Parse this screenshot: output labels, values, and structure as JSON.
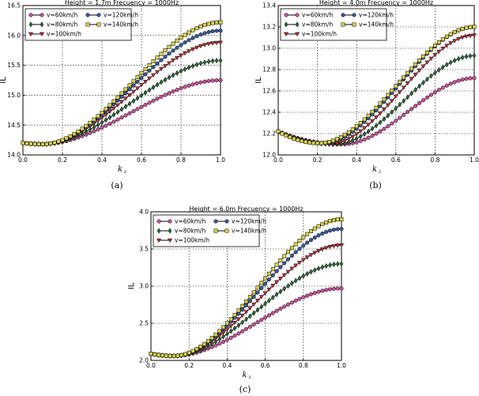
{
  "chart_data": [
    {
      "type": "line",
      "caption": "(a)",
      "title": "Height = 1.7m  Frecuency = 1000Hz",
      "xlabel": "k",
      "xlabel_sub": "z",
      "ylabel": "IL",
      "xlim": [
        0.0,
        1.0
      ],
      "ylim": [
        14.0,
        16.5
      ],
      "xticks": [
        "0.0",
        "0.2",
        "0.4",
        "0.6",
        "0.8",
        "1.0"
      ],
      "yticks": [
        "14.0",
        "14.5",
        "15.0",
        "15.5",
        "16.0",
        "16.5"
      ],
      "legend_position": "top-left",
      "series": [
        {
          "name": "v=60km/h",
          "marker": "circle",
          "color": "#c8509a",
          "start": 14.2,
          "min": 14.18,
          "x_min": 0.1,
          "end": 15.25
        },
        {
          "name": "v=80km/h",
          "marker": "diamond",
          "color": "#2e6b3a",
          "start": 14.2,
          "min": 14.18,
          "x_min": 0.1,
          "end": 15.58
        },
        {
          "name": "v=100km/h",
          "marker": "triangle",
          "color": "#c4303a",
          "start": 14.2,
          "min": 14.18,
          "x_min": 0.1,
          "end": 15.88
        },
        {
          "name": "v=120km/h",
          "marker": "circle",
          "color": "#3a5a9a",
          "start": 14.2,
          "min": 14.18,
          "x_min": 0.1,
          "end": 16.08
        },
        {
          "name": "v=140km/h",
          "marker": "square",
          "color": "#d8d048",
          "start": 14.2,
          "min": 14.18,
          "x_min": 0.1,
          "end": 16.22
        }
      ]
    },
    {
      "type": "line",
      "caption": "(b)",
      "title": "Height = 4.0m  Frecuency = 1000Hz",
      "xlabel": "k",
      "xlabel_sub": "z",
      "ylabel": "IL",
      "xlim": [
        0.0,
        1.0
      ],
      "ylim": [
        12.0,
        13.4
      ],
      "xticks": [
        "0.0",
        "0.2",
        "0.4",
        "0.6",
        "0.8",
        "1.0"
      ],
      "yticks": [
        "12.0",
        "12.2",
        "12.4",
        "12.6",
        "12.8",
        "13.0",
        "13.2",
        "13.4"
      ],
      "legend_position": "top-left",
      "series": [
        {
          "name": "v=60km/h",
          "marker": "circle",
          "color": "#c8509a",
          "start": 12.22,
          "min": 12.1,
          "x_min": 0.33,
          "end": 12.72
        },
        {
          "name": "v=80km/h",
          "marker": "diamond",
          "color": "#2e6b3a",
          "start": 12.22,
          "min": 12.1,
          "x_min": 0.29,
          "end": 12.93
        },
        {
          "name": "v=100km/h",
          "marker": "triangle",
          "color": "#c4303a",
          "start": 12.22,
          "min": 12.1,
          "x_min": 0.26,
          "end": 13.12
        },
        {
          "name": "v=120km/h",
          "marker": "circle",
          "color": "#3a5a9a",
          "start": 12.22,
          "min": 12.11,
          "x_min": 0.23,
          "end": 13.2
        },
        {
          "name": "v=140km/h",
          "marker": "square",
          "color": "#d8d048",
          "start": 12.22,
          "min": 12.11,
          "x_min": 0.21,
          "end": 13.2
        }
      ]
    },
    {
      "type": "line",
      "caption": "(c)",
      "title": "Height = 6.0m  Frecuency = 1000Hz",
      "xlabel": "k",
      "xlabel_sub": "z",
      "ylabel": "IL",
      "xlim": [
        0.0,
        1.0
      ],
      "ylim": [
        2.0,
        4.0
      ],
      "xticks": [
        "0.0",
        "0.2",
        "0.4",
        "0.6",
        "0.8",
        "1.0"
      ],
      "yticks": [
        "2.0",
        "2.5",
        "3.0",
        "3.5",
        "4.0"
      ],
      "legend_position": "top-left",
      "series": [
        {
          "name": "v=60km/h",
          "marker": "circle",
          "color": "#c8509a",
          "start": 2.09,
          "min": 2.06,
          "x_min": 0.12,
          "end": 2.97
        },
        {
          "name": "v=80km/h",
          "marker": "diamond",
          "color": "#2e6b3a",
          "start": 2.09,
          "min": 2.06,
          "x_min": 0.12,
          "end": 3.3
        },
        {
          "name": "v=100km/h",
          "marker": "triangle",
          "color": "#c4303a",
          "start": 2.09,
          "min": 2.06,
          "x_min": 0.12,
          "end": 3.55
        },
        {
          "name": "v=120km/h",
          "marker": "circle",
          "color": "#3a5a9a",
          "start": 2.09,
          "min": 2.06,
          "x_min": 0.12,
          "end": 3.77
        },
        {
          "name": "v=140km/h",
          "marker": "square",
          "color": "#d8d048",
          "start": 2.09,
          "min": 2.06,
          "x_min": 0.12,
          "end": 3.9
        }
      ]
    }
  ]
}
